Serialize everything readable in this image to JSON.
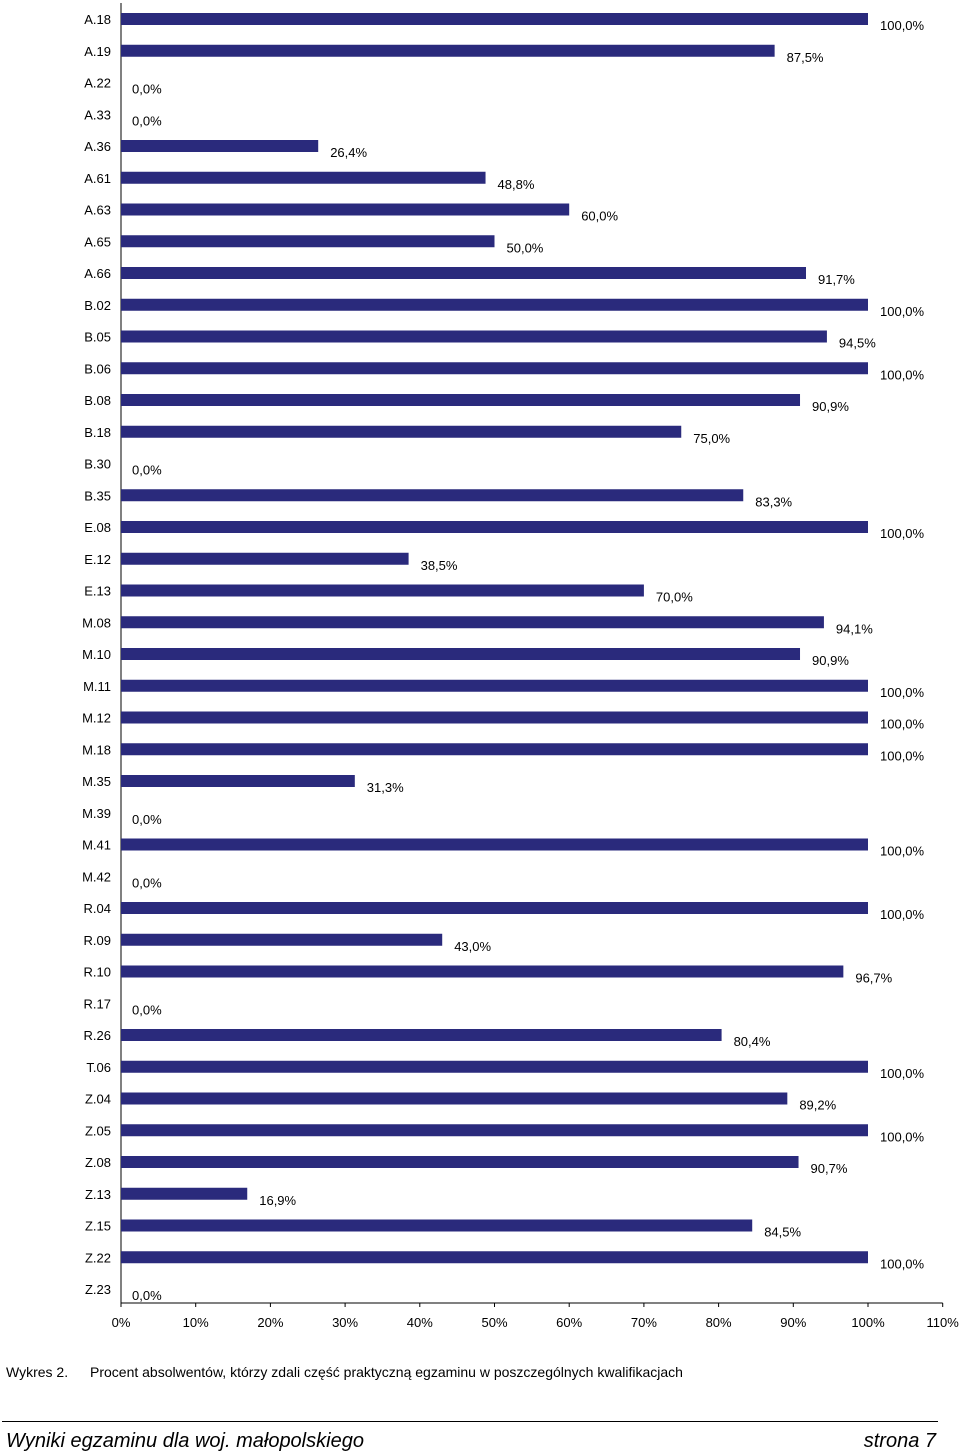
{
  "chart_data": {
    "type": "bar",
    "orientation": "horizontal",
    "categories": [
      "A.18",
      "A.19",
      "A.22",
      "A.33",
      "A.36",
      "A.61",
      "A.63",
      "A.65",
      "A.66",
      "B.02",
      "B.05",
      "B.06",
      "B.08",
      "B.18",
      "B.30",
      "B.35",
      "E.08",
      "E.12",
      "E.13",
      "M.08",
      "M.10",
      "M.11",
      "M.12",
      "M.18",
      "M.35",
      "M.39",
      "M.41",
      "M.42",
      "R.04",
      "R.09",
      "R.10",
      "R.17",
      "R.26",
      "T.06",
      "Z.04",
      "Z.05",
      "Z.08",
      "Z.13",
      "Z.15",
      "Z.22",
      "Z.23"
    ],
    "values": [
      100.0,
      87.5,
      0.0,
      0.0,
      26.4,
      48.8,
      60.0,
      50.0,
      91.7,
      100.0,
      94.5,
      100.0,
      90.9,
      75.0,
      0.0,
      83.3,
      100.0,
      38.5,
      70.0,
      94.1,
      90.9,
      100.0,
      100.0,
      100.0,
      31.3,
      0.0,
      100.0,
      0.0,
      100.0,
      43.0,
      96.7,
      0.0,
      80.4,
      100.0,
      89.2,
      100.0,
      90.7,
      16.9,
      84.5,
      100.0,
      0.0
    ],
    "value_labels": [
      "100,0%",
      "87,5%",
      "0,0%",
      "0,0%",
      "26,4%",
      "48,8%",
      "60,0%",
      "50,0%",
      "91,7%",
      "100,0%",
      "94,5%",
      "100,0%",
      "90,9%",
      "75,0%",
      "0,0%",
      "83,3%",
      "100,0%",
      "38,5%",
      "70,0%",
      "94,1%",
      "90,9%",
      "100,0%",
      "100,0%",
      "100,0%",
      "31,3%",
      "0,0%",
      "100,0%",
      "0,0%",
      "100,0%",
      "43,0%",
      "96,7%",
      "0,0%",
      "80,4%",
      "100,0%",
      "89,2%",
      "100,0%",
      "90,7%",
      "16,9%",
      "84,5%",
      "100,0%",
      "0,0%"
    ],
    "xlim": [
      0,
      110
    ],
    "x_ticks": [
      "0%",
      "10%",
      "20%",
      "30%",
      "40%",
      "50%",
      "60%",
      "70%",
      "80%",
      "90%",
      "100%",
      "110%"
    ],
    "bar_color": "#2a2a7c",
    "grid": false,
    "legend": "none"
  },
  "caption": {
    "label": "Wykres 2.",
    "text": "Procent absolwentów, którzy zdali część praktyczną egzaminu w poszczególnych kwalifikacjach"
  },
  "footer": {
    "left": "Wyniki egzaminu dla woj. małopolskiego",
    "right": "strona 7"
  }
}
